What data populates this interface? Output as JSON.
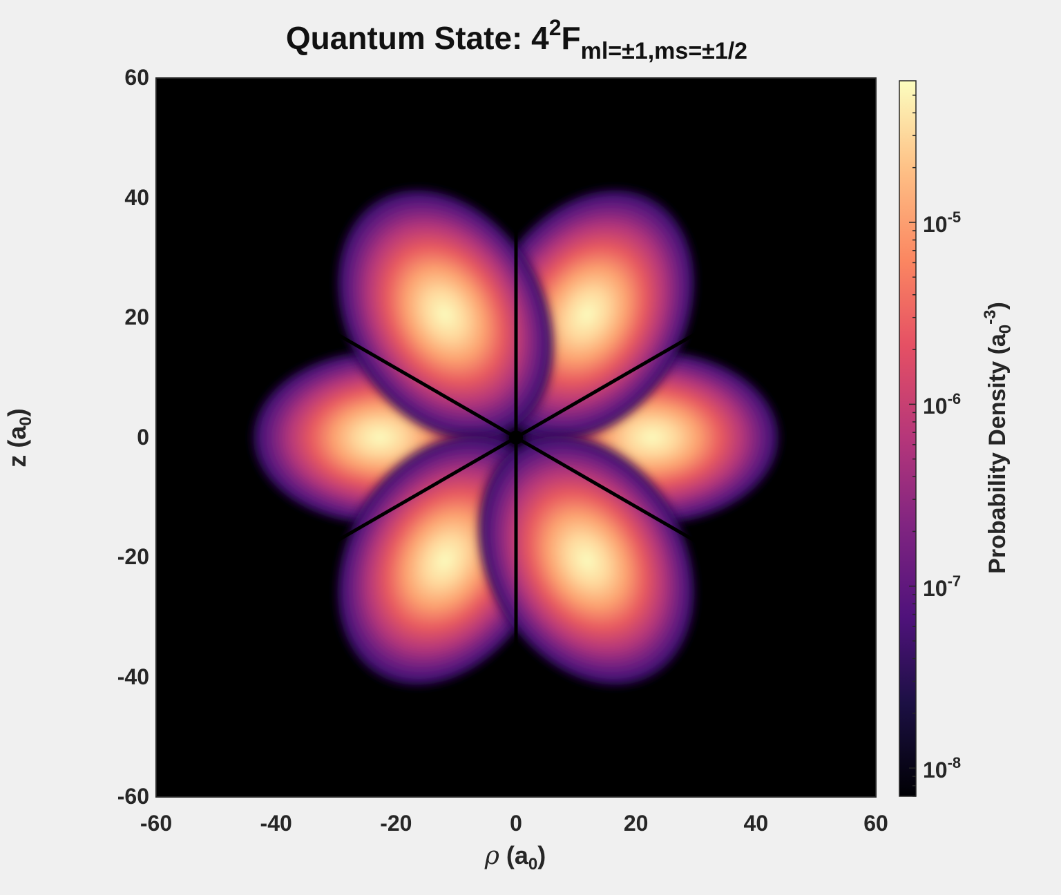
{
  "chart_data": {
    "type": "heatmap",
    "title": {
      "main": "Quantum State: 4",
      "superscript": "2",
      "letter": "F",
      "subscript": "ml=±1,ms=±1/2"
    },
    "xlabel": {
      "symbol": "ρ",
      "text": "(a",
      "sub": "0",
      "close": ")"
    },
    "ylabel": {
      "text": "z (a",
      "sub": "0",
      "close": ")"
    },
    "colorbar_label": {
      "text": "Probability Density (a",
      "sub": "0",
      "sup": "-3",
      "close": ")"
    },
    "xlim": [
      -60,
      60
    ],
    "ylim": [
      -60,
      60
    ],
    "x_ticks": [
      "-60",
      "-40",
      "-20",
      "0",
      "20",
      "40",
      "60"
    ],
    "y_ticks": [
      "60",
      "40",
      "20",
      "0",
      "-20",
      "-40",
      "-60"
    ],
    "colorbar": {
      "scale": "log",
      "range": [
        7e-09,
        6e-05
      ],
      "ticks": [
        {
          "base": "10",
          "exp": "-5",
          "value": 1e-05
        },
        {
          "base": "10",
          "exp": "-6",
          "value": 1e-06
        },
        {
          "base": "10",
          "exp": "-7",
          "value": 1e-07
        },
        {
          "base": "10",
          "exp": "-8",
          "value": 1e-08
        }
      ]
    },
    "colormap": "magma",
    "grid": false
  }
}
